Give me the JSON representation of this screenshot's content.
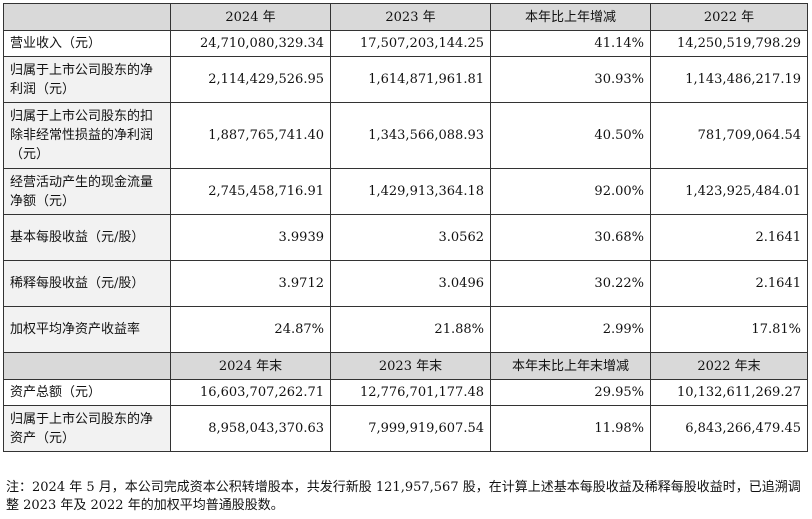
{
  "header1": [
    "",
    "2024 年",
    "2023 年",
    "本年比上年增减",
    "2022 年"
  ],
  "rows1": [
    {
      "label": "营业收入（元）",
      "values": [
        "24,710,080,329.34",
        "17,507,203,144.25",
        "41.14%",
        "14,250,519,798.29"
      ]
    },
    {
      "label": "归属于上市公司股东的净利润（元）",
      "values": [
        "2,114,429,526.95",
        "1,614,871,961.81",
        "30.93%",
        "1,143,486,217.19"
      ]
    },
    {
      "label": "归属于上市公司股东的扣除非经常性损益的净利润（元）",
      "values": [
        "1,887,765,741.40",
        "1,343,566,088.93",
        "40.50%",
        "781,709,064.54"
      ]
    },
    {
      "label": "经营活动产生的现金流量净额（元）",
      "values": [
        "2,745,458,716.91",
        "1,429,913,364.18",
        "92.00%",
        "1,423,925,484.01"
      ]
    },
    {
      "label": "基本每股收益（元/股）",
      "values": [
        "3.9939",
        "3.0562",
        "30.68%",
        "2.1641"
      ]
    },
    {
      "label": "稀释每股收益（元/股）",
      "values": [
        "3.9712",
        "3.0496",
        "30.22%",
        "2.1641"
      ]
    },
    {
      "label": "加权平均净资产收益率",
      "values": [
        "24.87%",
        "21.88%",
        "2.99%",
        "17.81%"
      ]
    }
  ],
  "header2": [
    "",
    "2024 年末",
    "2023 年末",
    "本年末比上年末增减",
    "2022 年末"
  ],
  "rows2": [
    {
      "label": "资产总额（元）",
      "values": [
        "16,603,707,262.71",
        "12,776,701,177.48",
        "29.95%",
        "10,132,611,269.27"
      ]
    },
    {
      "label": "归属于上市公司股东的净资产（元）",
      "values": [
        "8,958,043,370.63",
        "7,999,919,607.54",
        "11.98%",
        "6,843,266,479.45"
      ]
    }
  ],
  "note": "注：2024 年 5 月，本公司完成资本公积转增股本，共发行新股 121,957,567 股，在计算上述基本每股收益及稀释每股收益时，已追溯调整 2023 年及 2022 年的加权平均普通股股数。"
}
